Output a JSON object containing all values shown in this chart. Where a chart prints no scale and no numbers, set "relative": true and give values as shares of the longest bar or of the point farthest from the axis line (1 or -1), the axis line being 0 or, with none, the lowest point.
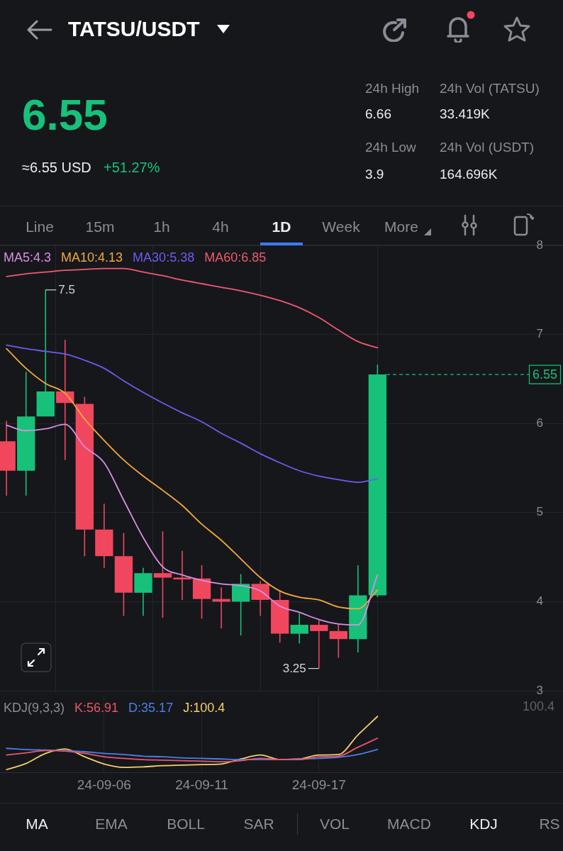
{
  "chart_data": [
    {
      "type": "other",
      "title": "TATSU/USDT",
      "annotations": [
        "24h High",
        "24h Vol (TATSU)",
        "6.55",
        "6.66",
        "33.419K",
        "24h Low",
        "24h Vol (USDT)",
        "≈6.55 USD",
        "+51.27%",
        "3.9",
        "164.696K",
        "Line",
        "15m",
        "1h",
        "4h",
        "1D",
        "Week",
        "More"
      ]
    },
    {
      "type": "candlestick",
      "x": [
        "--09-01",
        "--09-02",
        "--09-03",
        "--09-04",
        "--09-05",
        "--09-06",
        "--09-07",
        "--09-08",
        "--09-09",
        "--09-10",
        "--09-11",
        "--09-12",
        "--09-13",
        "--09-14",
        "--09-15",
        "--09-16",
        "--09-17",
        "--09-18",
        "--09-19",
        "--09-20"
      ],
      "ohlc": [
        [
          5.8,
          6.03,
          5.19,
          5.47
        ],
        [
          5.47,
          6.58,
          5.19,
          6.08
        ],
        [
          6.08,
          7.5,
          6.08,
          6.36
        ],
        [
          6.36,
          6.94,
          5.59,
          6.23
        ],
        [
          6.22,
          6.3,
          4.51,
          4.81
        ],
        [
          4.81,
          5.1,
          4.38,
          4.51
        ],
        [
          4.51,
          4.77,
          3.84,
          4.1
        ],
        [
          4.1,
          4.38,
          3.84,
          4.32
        ],
        [
          4.32,
          4.79,
          3.82,
          4.27
        ],
        [
          4.27,
          4.57,
          4.02,
          4.25
        ],
        [
          4.26,
          4.41,
          3.81,
          4.03
        ],
        [
          4.03,
          4.16,
          3.7,
          4.0
        ],
        [
          4.0,
          4.31,
          3.62,
          4.2
        ],
        [
          4.2,
          4.23,
          3.84,
          4.02
        ],
        [
          4.02,
          4.13,
          3.54,
          3.64
        ],
        [
          3.64,
          3.87,
          3.53,
          3.74
        ],
        [
          3.74,
          3.79,
          3.25,
          3.67
        ],
        [
          3.67,
          3.75,
          3.37,
          3.58
        ],
        [
          3.58,
          4.41,
          3.43,
          4.07
        ],
        [
          4.07,
          6.66,
          4.05,
          6.55
        ]
      ],
      "colors": [
        "#f0475e",
        "#17c17a",
        "#17c17a",
        "#f0475e",
        "#f0475e",
        "#f0475e",
        "#f0475e",
        "#17c17a",
        "#f0475e",
        "#f0475e",
        "#f0475e",
        "#f0475e",
        "#17c17a",
        "#f0475e",
        "#f0475e",
        "#17c17a",
        "#f0475e",
        "#f0475e",
        "#17c17a",
        "#17c17a"
      ],
      "series": [
        {
          "type": "line",
          "name": "MA5:4.3",
          "color": "#d98ee3",
          "values": [
            5.98,
            5.92,
            5.94,
            5.99,
            5.74,
            5.56,
            5.14,
            4.72,
            4.39,
            4.3,
            4.24,
            4.2,
            4.18,
            4.12,
            3.95,
            3.88,
            3.8,
            3.75,
            3.74,
            4.3
          ]
        },
        {
          "type": "line",
          "name": "MA10:4.13",
          "color": "#f2a93b",
          "values": [
            6.84,
            6.62,
            6.45,
            6.34,
            6.05,
            5.81,
            5.59,
            5.41,
            5.25,
            5.08,
            4.87,
            4.69,
            4.48,
            4.27,
            4.12,
            4.05,
            4.02,
            3.94,
            3.92,
            4.13
          ]
        },
        {
          "type": "line",
          "name": "MA30:5.38",
          "color": "#6c5cf2",
          "values": [
            6.88,
            6.84,
            6.81,
            6.78,
            6.71,
            6.62,
            6.48,
            6.35,
            6.23,
            6.12,
            6.02,
            5.89,
            5.78,
            5.66,
            5.56,
            5.47,
            5.41,
            5.37,
            5.34,
            5.38
          ]
        },
        {
          "type": "line",
          "name": "MA60:6.85",
          "color": "#ee5a6f",
          "values": [
            7.65,
            7.68,
            7.7,
            7.72,
            7.73,
            7.74,
            7.74,
            7.7,
            7.66,
            7.61,
            7.57,
            7.53,
            7.49,
            7.44,
            7.38,
            7.3,
            7.19,
            7.05,
            6.92,
            6.85
          ]
        }
      ],
      "xlim": [
        "--08-31T16:00",
        "--09-29T12:00"
      ],
      "xticks": [
        {
          "value": "--09-06",
          "label": null
        },
        {
          "value": "--09-11",
          "label": null
        },
        {
          "value": "--09-17",
          "label": null
        }
      ],
      "ylim": [
        3,
        8
      ],
      "yticks": [
        3,
        4,
        5,
        6,
        7,
        8
      ],
      "tick_labels": "y",
      "grid": true,
      "legend": "top left",
      "ref_lines": [
        {
          "axis": "y",
          "value": 6.55,
          "label": "6.55",
          "color": "#17c17a",
          "line_style": "dashed"
        }
      ],
      "annotations": [
        {
          "text": "7.5",
          "x": "--09-03",
          "y": 7.5
        },
        {
          "text": "3.25",
          "x": "--09-17",
          "y": 3.25
        }
      ]
    },
    {
      "type": "line",
      "relative": true,
      "x": [
        "--09-01",
        "--09-02",
        "--09-03",
        "--09-04",
        "--09-05",
        "--09-06",
        "--09-07",
        "--09-08",
        "--09-09",
        "--09-10",
        "--09-11",
        "--09-12",
        "--09-13",
        "--09-14",
        "--09-15",
        "--09-16",
        "--09-17",
        "--09-18",
        "--09-19",
        "--09-20"
      ],
      "legend_title": "KDJ(9,3,3)",
      "legend": "top left",
      "series": [
        {
          "name": "K:56.91",
          "color": "#e8566a",
          "values": [
            0.31,
            0.35,
            0.39,
            0.38,
            0.34,
            0.28,
            0.25,
            0.23,
            0.22,
            0.21,
            0.2,
            0.19,
            0.21,
            0.25,
            0.23,
            0.23,
            0.28,
            0.29,
            0.45,
            0.61
          ]
        },
        {
          "name": "D:35.17",
          "color": "#4a7fe6",
          "values": [
            0.43,
            0.41,
            0.4,
            0.39,
            0.37,
            0.34,
            0.32,
            0.29,
            0.28,
            0.26,
            0.25,
            0.24,
            0.23,
            0.23,
            0.23,
            0.24,
            0.25,
            0.27,
            0.32,
            0.41
          ]
        },
        {
          "name": "J:100.4",
          "color": "#f3cf6e",
          "values": [
            0.05,
            0.16,
            0.34,
            0.42,
            0.28,
            0.15,
            0.09,
            0.1,
            0.12,
            0.13,
            0.14,
            0.15,
            0.24,
            0.31,
            0.23,
            0.24,
            0.31,
            0.32,
            0.67,
            1
          ]
        }
      ],
      "xlim": [
        "--08-31T16:00",
        "--09-29T12:00"
      ],
      "xticks": [
        {
          "value": "--09-06",
          "label": "24-09-06"
        },
        {
          "value": "--09-11",
          "label": "24-09-11"
        },
        {
          "value": "--09-17",
          "label": "24-09-17"
        }
      ],
      "tick_labels": "x",
      "grid": "x",
      "annotations": [
        "100.4"
      ]
    },
    {
      "type": "other",
      "annotations": [
        "MA",
        "EMA",
        "BOLL",
        "SAR",
        "VOL",
        "MACD",
        "KDJ",
        "RS"
      ]
    }
  ]
}
